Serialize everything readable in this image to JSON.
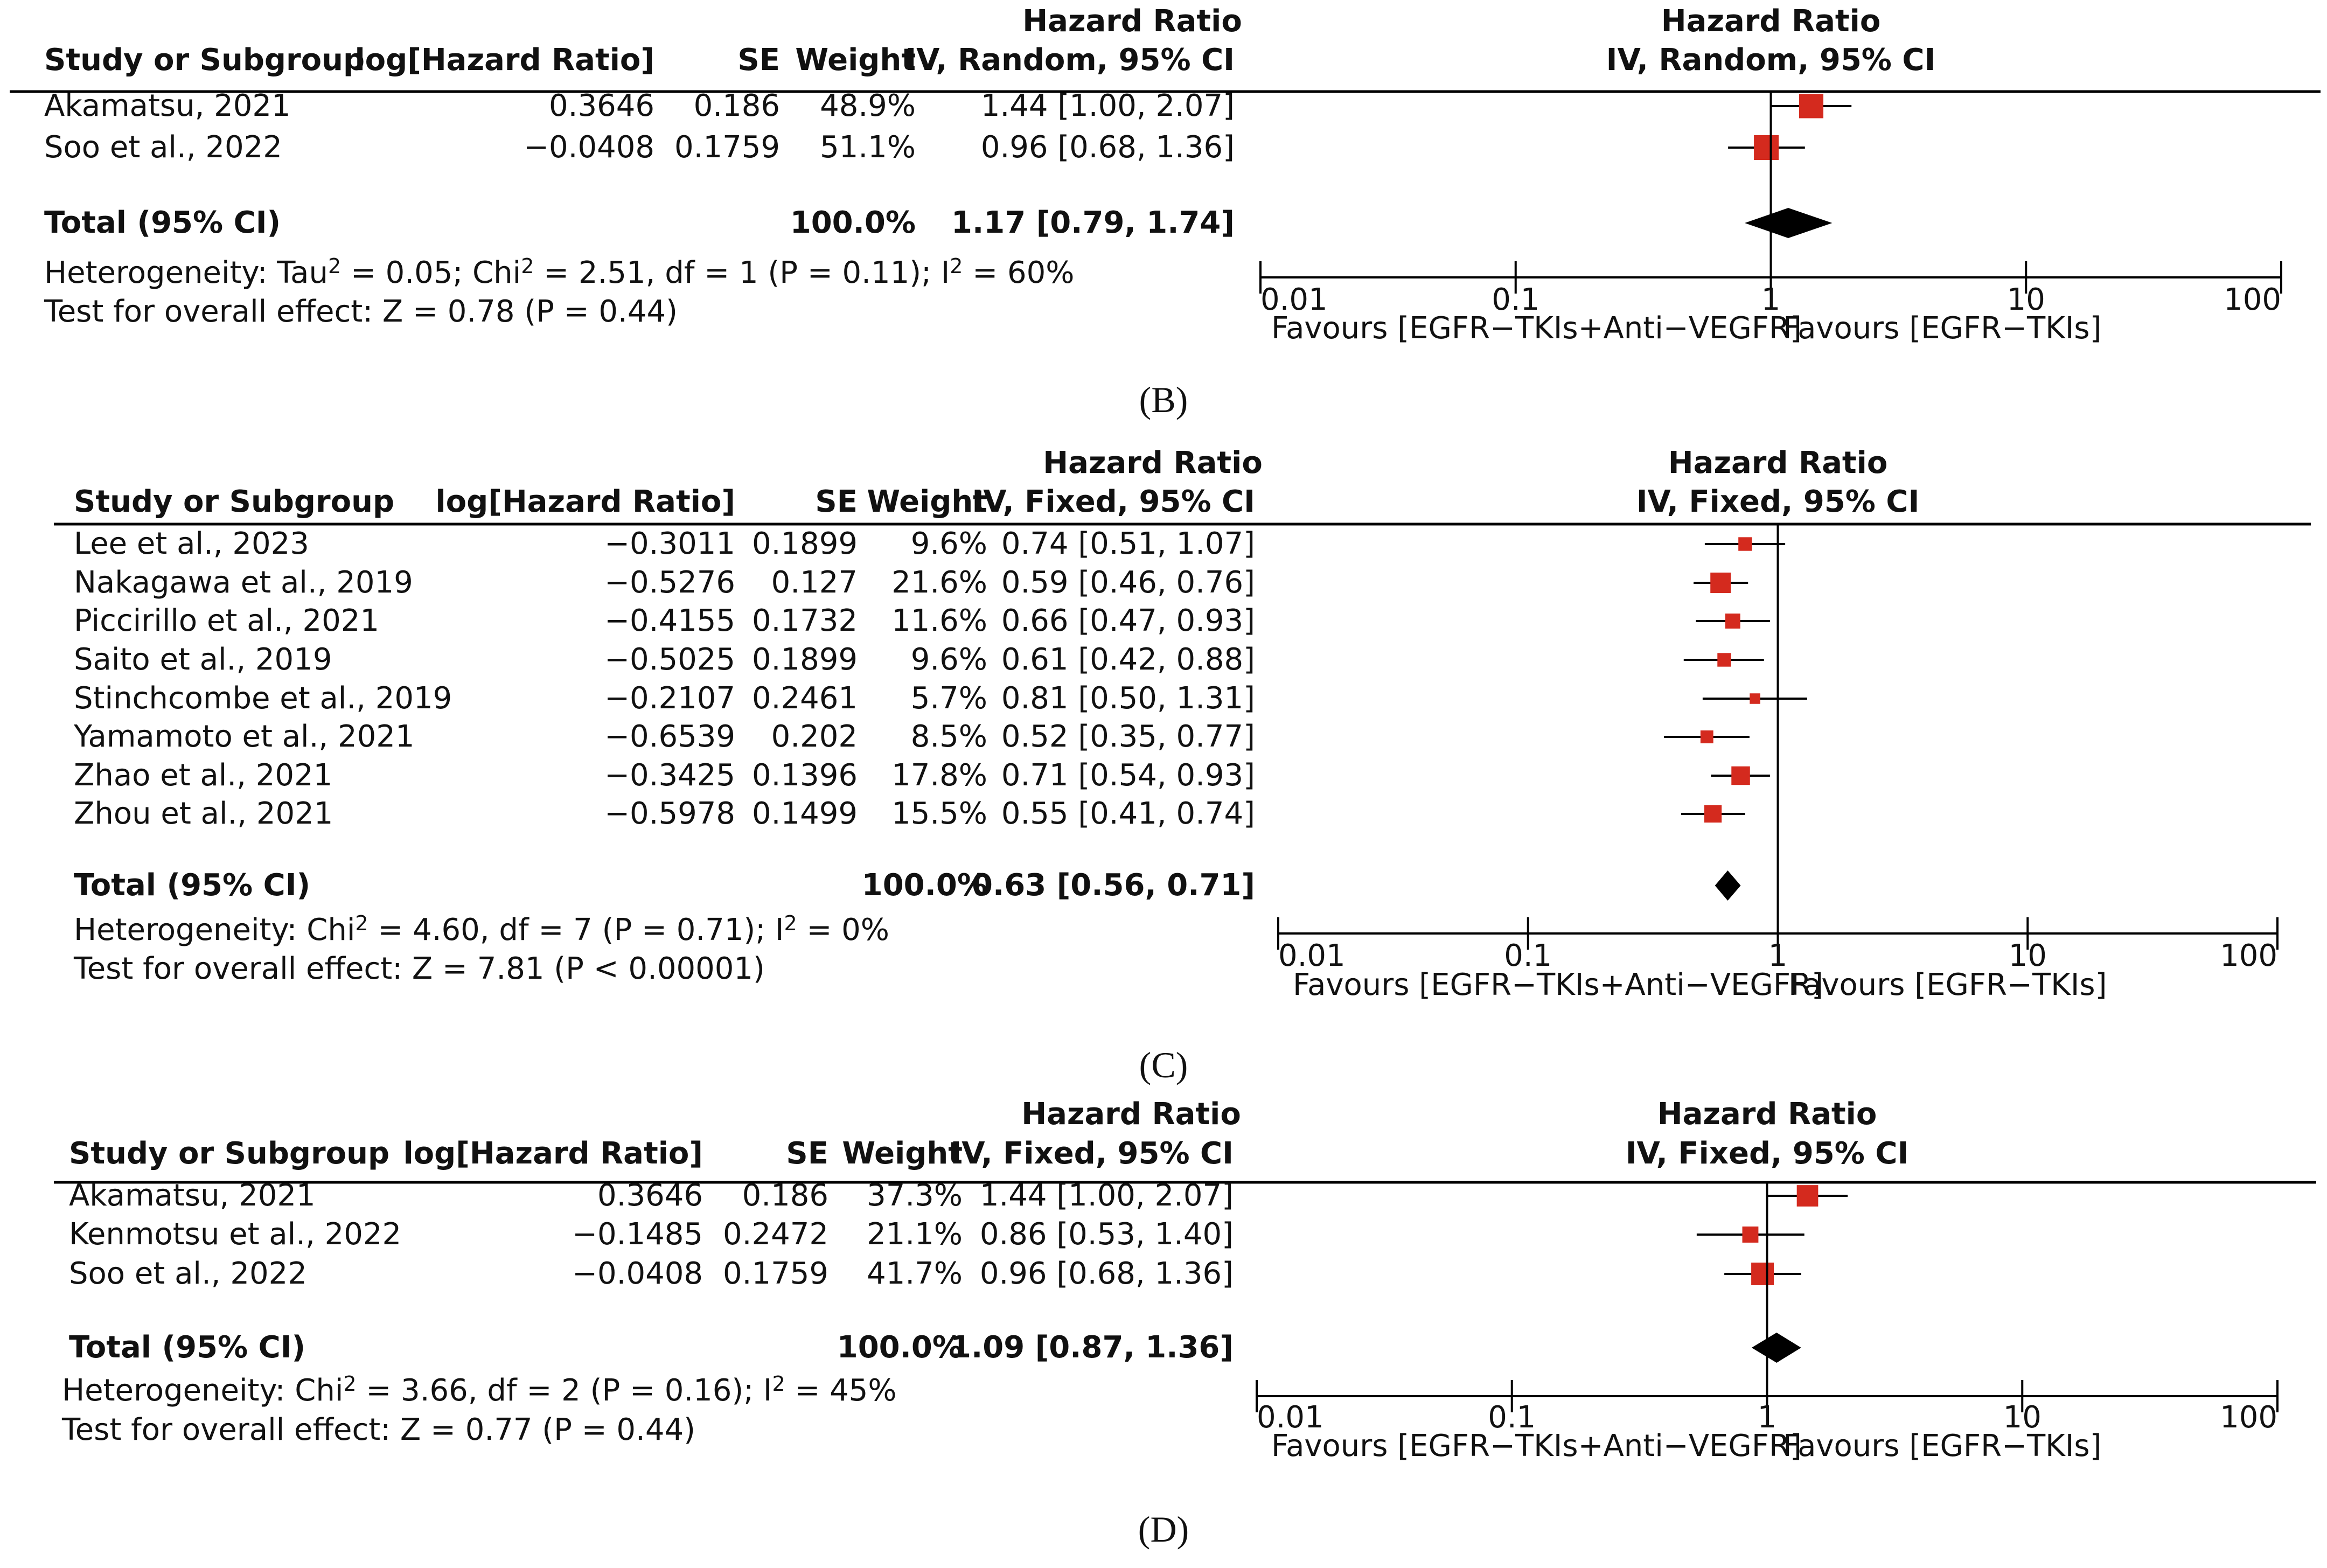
{
  "figure": {
    "captions": [
      "(B)",
      "(C)",
      "(D)"
    ]
  },
  "colors": {
    "square": "#d42a1e",
    "diamond": "#000000",
    "line": "#000000"
  },
  "chart_data": [
    {
      "type": "forest",
      "panel": "B",
      "caption": "(B)",
      "headers": {
        "study": "Study or Subgroup",
        "loghr": "log[Hazard Ratio]",
        "se": "SE",
        "weight": "Weight",
        "hr_top": "Hazard Ratio",
        "hr_sub": "IV, Random, 95% CI",
        "plot_top": "Hazard Ratio",
        "plot_sub": "IV, Random, 95% CI"
      },
      "studies": [
        {
          "name": "Akamatsu, 2021",
          "loghr": "0.3646",
          "se": "0.186",
          "weight": "48.9%",
          "ci_text": "1.44 [1.00, 2.07]",
          "hr": 1.44,
          "lo": 1.0,
          "hi": 2.07,
          "w": 48.9
        },
        {
          "name": "Soo et al., 2022",
          "loghr": "−0.0408",
          "se": "0.1759",
          "weight": "51.1%",
          "ci_text": "0.96 [0.68, 1.36]",
          "hr": 0.96,
          "lo": 0.68,
          "hi": 1.36,
          "w": 51.1
        }
      ],
      "total": {
        "label": "Total (95% CI)",
        "weight": "100.0%",
        "ci_text": "1.17 [0.79, 1.74]",
        "hr": 1.17,
        "lo": 0.79,
        "hi": 1.74
      },
      "heterogeneity": "Heterogeneity: Tau² = 0.05; Chi² = 2.51, df = 1 (P = 0.11); I² = 60%",
      "overall_effect": "Test for overall effect: Z = 0.78 (P = 0.44)",
      "axis": {
        "scale": "log",
        "range": [
          0.01,
          100
        ],
        "ticks": [
          0.01,
          0.1,
          1,
          10,
          100
        ],
        "tick_labels": [
          "0.01",
          "0.1",
          "1",
          "10",
          "100"
        ]
      },
      "favours_left": "Favours [EGFR−TKIs+Anti−VEGFR]",
      "favours_right": "Favours [EGFR−TKIs]"
    },
    {
      "type": "forest",
      "panel": "C",
      "caption": "(C)",
      "headers": {
        "study": "Study or Subgroup",
        "loghr": "log[Hazard Ratio]",
        "se": "SE",
        "weight": "Weight",
        "hr_top": "Hazard Ratio",
        "hr_sub": "IV, Fixed, 95% CI",
        "plot_top": "Hazard Ratio",
        "plot_sub": "IV, Fixed, 95% CI"
      },
      "studies": [
        {
          "name": "Lee et al., 2023",
          "loghr": "−0.3011",
          "se": "0.1899",
          "weight": "9.6%",
          "ci_text": "0.74 [0.51, 1.07]",
          "hr": 0.74,
          "lo": 0.51,
          "hi": 1.07,
          "w": 9.6
        },
        {
          "name": "Nakagawa et al., 2019",
          "loghr": "−0.5276",
          "se": "0.127",
          "weight": "21.6%",
          "ci_text": "0.59 [0.46, 0.76]",
          "hr": 0.59,
          "lo": 0.46,
          "hi": 0.76,
          "w": 21.6
        },
        {
          "name": "Piccirillo et al., 2021",
          "loghr": "−0.4155",
          "se": "0.1732",
          "weight": "11.6%",
          "ci_text": "0.66 [0.47, 0.93]",
          "hr": 0.66,
          "lo": 0.47,
          "hi": 0.93,
          "w": 11.6
        },
        {
          "name": "Saito et al., 2019",
          "loghr": "−0.5025",
          "se": "0.1899",
          "weight": "9.6%",
          "ci_text": "0.61 [0.42, 0.88]",
          "hr": 0.61,
          "lo": 0.42,
          "hi": 0.88,
          "w": 9.6
        },
        {
          "name": "Stinchcombe et al., 2019",
          "loghr": "−0.2107",
          "se": "0.2461",
          "weight": "5.7%",
          "ci_text": "0.81 [0.50, 1.31]",
          "hr": 0.81,
          "lo": 0.5,
          "hi": 1.31,
          "w": 5.7
        },
        {
          "name": "Yamamoto et al., 2021",
          "loghr": "−0.6539",
          "se": "0.202",
          "weight": "8.5%",
          "ci_text": "0.52 [0.35, 0.77]",
          "hr": 0.52,
          "lo": 0.35,
          "hi": 0.77,
          "w": 8.5
        },
        {
          "name": "Zhao et al., 2021",
          "loghr": "−0.3425",
          "se": "0.1396",
          "weight": "17.8%",
          "ci_text": "0.71 [0.54, 0.93]",
          "hr": 0.71,
          "lo": 0.54,
          "hi": 0.93,
          "w": 17.8
        },
        {
          "name": "Zhou et al., 2021",
          "loghr": "−0.5978",
          "se": "0.1499",
          "weight": "15.5%",
          "ci_text": "0.55 [0.41, 0.74]",
          "hr": 0.55,
          "lo": 0.41,
          "hi": 0.74,
          "w": 15.5
        }
      ],
      "total": {
        "label": "Total (95% CI)",
        "weight": "100.0%",
        "ci_text": "0.63 [0.56, 0.71]",
        "hr": 0.63,
        "lo": 0.56,
        "hi": 0.71
      },
      "heterogeneity": "Heterogeneity: Chi² = 4.60, df = 7 (P = 0.71); I² = 0%",
      "overall_effect": "Test for overall effect: Z = 7.81 (P < 0.00001)",
      "axis": {
        "scale": "log",
        "range": [
          0.01,
          100
        ],
        "ticks": [
          0.01,
          0.1,
          1,
          10,
          100
        ],
        "tick_labels": [
          "0.01",
          "0.1",
          "1",
          "10",
          "100"
        ]
      },
      "favours_left": "Favours [EGFR−TKIs+Anti−VEGFR]",
      "favours_right": "Favours [EGFR−TKIs]"
    },
    {
      "type": "forest",
      "panel": "D",
      "caption": "(D)",
      "headers": {
        "study": "Study or Subgroup",
        "loghr": "log[Hazard Ratio]",
        "se": "SE",
        "weight": "Weight",
        "hr_top": "Hazard Ratio",
        "hr_sub": "IV, Fixed, 95% CI",
        "plot_top": "Hazard Ratio",
        "plot_sub": "IV, Fixed, 95% CI"
      },
      "studies": [
        {
          "name": "Akamatsu, 2021",
          "loghr": "0.3646",
          "se": "0.186",
          "weight": "37.3%",
          "ci_text": "1.44 [1.00, 2.07]",
          "hr": 1.44,
          "lo": 1.0,
          "hi": 2.07,
          "w": 37.3
        },
        {
          "name": "Kenmotsu et al., 2022",
          "loghr": "−0.1485",
          "se": "0.2472",
          "weight": "21.1%",
          "ci_text": "0.86 [0.53, 1.40]",
          "hr": 0.86,
          "lo": 0.53,
          "hi": 1.4,
          "w": 21.1
        },
        {
          "name": "Soo et al., 2022",
          "loghr": "−0.0408",
          "se": "0.1759",
          "weight": "41.7%",
          "ci_text": "0.96 [0.68, 1.36]",
          "hr": 0.96,
          "lo": 0.68,
          "hi": 1.36,
          "w": 41.7
        }
      ],
      "total": {
        "label": "Total (95% CI)",
        "weight": "100.0%",
        "ci_text": "1.09 [0.87, 1.36]",
        "hr": 1.09,
        "lo": 0.87,
        "hi": 1.36
      },
      "heterogeneity": "Heterogeneity: Chi² = 3.66, df = 2 (P = 0.16); I² = 45%",
      "overall_effect": "Test for overall effect: Z = 0.77 (P = 0.44)",
      "axis": {
        "scale": "log",
        "range": [
          0.01,
          100
        ],
        "ticks": [
          0.01,
          0.1,
          1,
          10,
          100
        ],
        "tick_labels": [
          "0.01",
          "0.1",
          "1",
          "10",
          "100"
        ]
      },
      "favours_left": "Favours [EGFR−TKIs+Anti−VEGFR]",
      "favours_right": "Favours [EGFR−TKIs]"
    }
  ]
}
